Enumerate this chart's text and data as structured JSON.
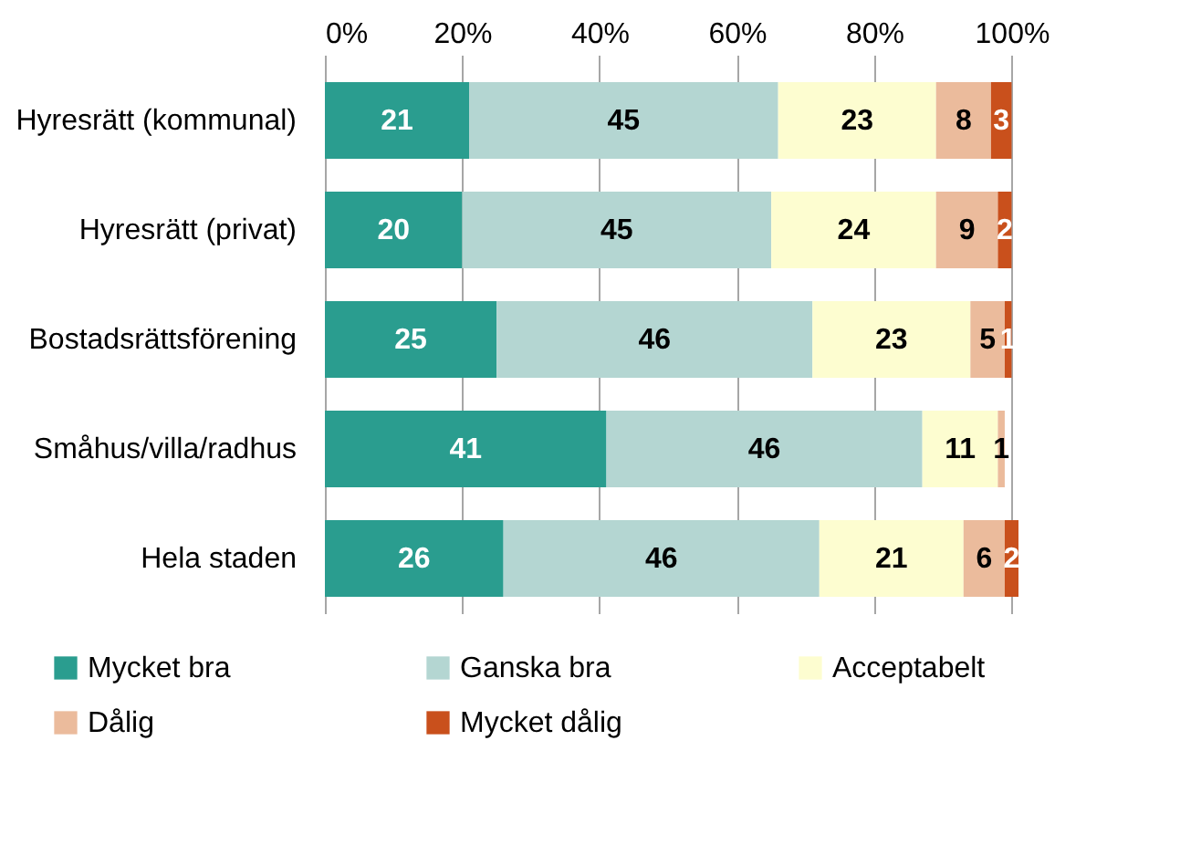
{
  "chart_data": {
    "type": "bar",
    "orientation": "horizontal",
    "stacked": true,
    "data_labels": true,
    "grid": "x",
    "legend": "bottom",
    "categories": [
      "Hyresrätt (kommunal)",
      "Hyresrätt (privat)",
      "Bostadsrättsförening",
      "Småhus/villa/radhus",
      "Hela staden"
    ],
    "xlim": [
      0,
      101
    ],
    "xticks": [
      {
        "value": 0,
        "label": "0%"
      },
      {
        "value": 20,
        "label": "20%"
      },
      {
        "value": 40,
        "label": "40%"
      },
      {
        "value": 60,
        "label": "60%"
      },
      {
        "value": 80,
        "label": "80%"
      },
      {
        "value": 100,
        "label": "100%"
      }
    ],
    "series": [
      {
        "name": "Mycket bra",
        "color": "#2a9d8f",
        "values": [
          21,
          20,
          25,
          41,
          26
        ]
      },
      {
        "name": "Ganska bra",
        "color": "#b4d6d2",
        "values": [
          45,
          45,
          46,
          46,
          46
        ]
      },
      {
        "name": "Acceptabelt",
        "color": "#fdfdd0",
        "values": [
          23,
          24,
          23,
          11,
          21
        ]
      },
      {
        "name": "Dålig",
        "color": "#ebbb9c",
        "values": [
          8,
          9,
          5,
          1,
          6
        ]
      },
      {
        "name": "Mycket dålig",
        "color": "#c9501c",
        "values": [
          3,
          2,
          1,
          null,
          2
        ]
      }
    ]
  }
}
